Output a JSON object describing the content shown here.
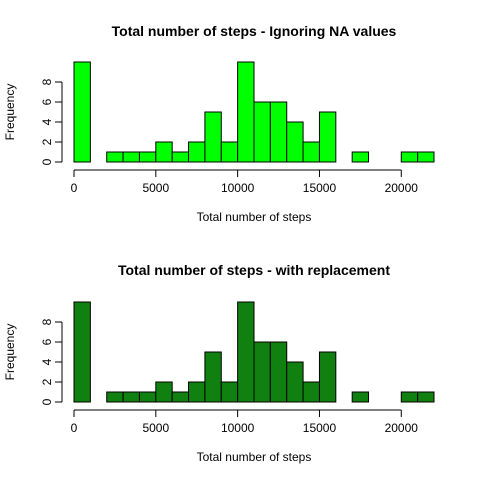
{
  "chart_data": [
    {
      "type": "bar",
      "title": "Total number of steps - Ignoring NA values",
      "xlabel": "Total number of steps",
      "ylabel": "Frequency",
      "bar_color": "#00ff00",
      "bin_width": 1000,
      "x_range": [
        0,
        22000
      ],
      "bins": [
        0,
        1000,
        2000,
        3000,
        4000,
        5000,
        6000,
        7000,
        8000,
        9000,
        10000,
        11000,
        12000,
        13000,
        14000,
        15000,
        16000,
        17000,
        18000,
        19000,
        20000,
        21000
      ],
      "values": [
        10,
        0,
        1,
        1,
        1,
        2,
        1,
        2,
        5,
        2,
        10,
        6,
        6,
        4,
        2,
        5,
        0,
        1,
        0,
        0,
        1,
        1
      ],
      "xticks": [
        0,
        5000,
        10000,
        15000,
        20000
      ],
      "yticks": [
        0,
        2,
        4,
        6,
        8
      ],
      "ylim": [
        0,
        10
      ]
    },
    {
      "type": "bar",
      "title": "Total number of steps - with replacement",
      "xlabel": "Total number of steps",
      "ylabel": "Frequency",
      "bar_color": "#108010",
      "bin_width": 1000,
      "x_range": [
        0,
        22000
      ],
      "bins": [
        0,
        1000,
        2000,
        3000,
        4000,
        5000,
        6000,
        7000,
        8000,
        9000,
        10000,
        11000,
        12000,
        13000,
        14000,
        15000,
        16000,
        17000,
        18000,
        19000,
        20000,
        21000
      ],
      "values": [
        10,
        0,
        1,
        1,
        1,
        2,
        1,
        2,
        5,
        2,
        10,
        6,
        6,
        4,
        2,
        5,
        0,
        1,
        0,
        0,
        1,
        1
      ],
      "xticks": [
        0,
        5000,
        10000,
        15000,
        20000
      ],
      "yticks": [
        0,
        2,
        4,
        6,
        8
      ],
      "ylim": [
        0,
        10
      ]
    }
  ]
}
